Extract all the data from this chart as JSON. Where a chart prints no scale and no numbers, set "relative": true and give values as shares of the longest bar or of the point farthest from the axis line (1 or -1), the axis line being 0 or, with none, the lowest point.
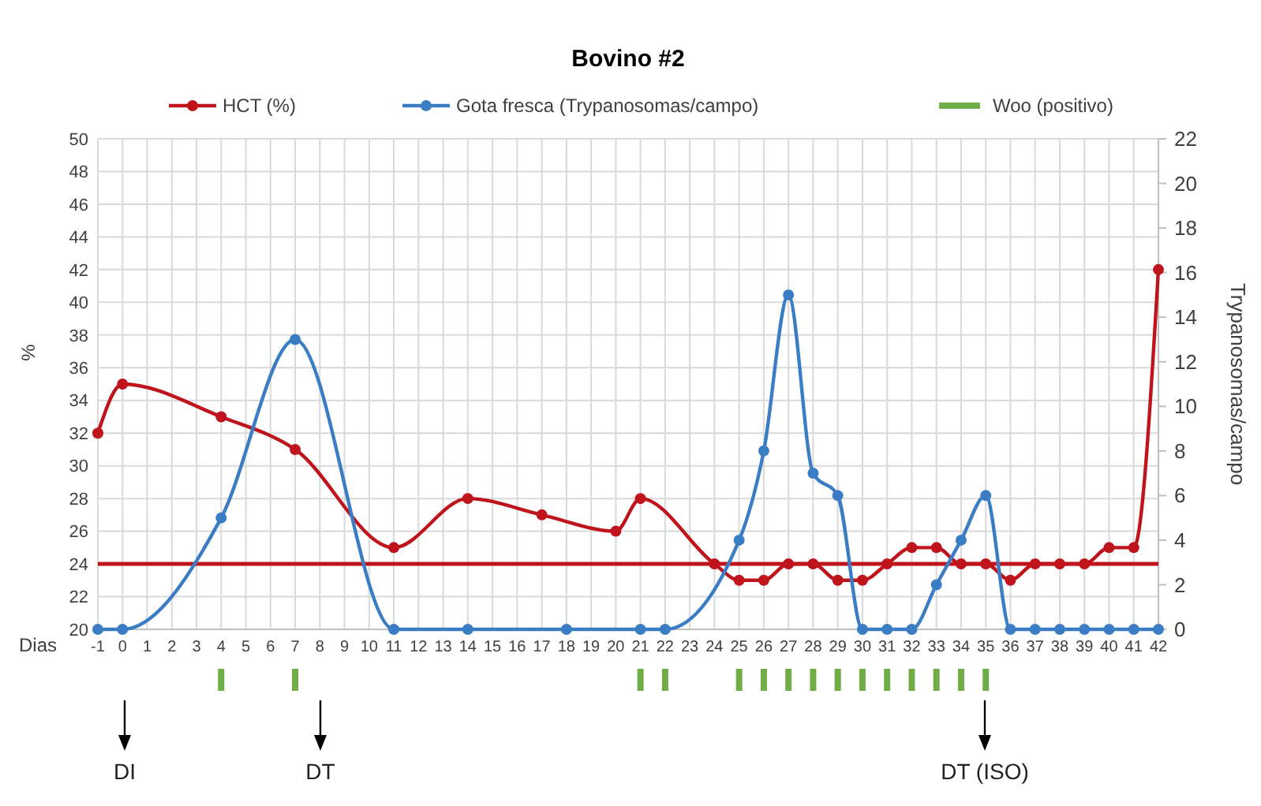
{
  "chart_data": [
    {
      "type": "line",
      "title": "Bovino #2",
      "xlabel": "Dias",
      "ylabel": "%",
      "y2label": "Trypanosomas/campo",
      "xlim": [
        -1,
        42
      ],
      "xticks": [
        -1,
        0,
        1,
        2,
        3,
        4,
        5,
        6,
        7,
        8,
        9,
        10,
        11,
        12,
        13,
        14,
        15,
        16,
        17,
        18,
        19,
        20,
        21,
        22,
        23,
        24,
        25,
        26,
        27,
        28,
        29,
        30,
        31,
        32,
        33,
        34,
        35,
        36,
        37,
        38,
        39,
        40,
        41,
        42
      ],
      "ylim": [
        20,
        50
      ],
      "yticks": [
        20,
        22,
        24,
        26,
        28,
        30,
        32,
        34,
        36,
        38,
        40,
        42,
        44,
        46,
        48,
        50
      ],
      "y2lim": [
        0,
        22
      ],
      "y2ticks": [
        0,
        2,
        4,
        6,
        8,
        10,
        12,
        14,
        16,
        18,
        20,
        22
      ],
      "grid": true,
      "legend": "top",
      "marker": "circle",
      "series": [
        {
          "name": "HCT (%)",
          "color": "#c0141c",
          "x": [
            -1,
            0,
            4,
            7,
            11,
            14,
            17,
            20,
            21,
            24,
            25,
            26,
            27,
            28,
            29,
            30,
            31,
            32,
            33,
            34,
            35,
            36,
            37,
            38,
            39,
            40,
            41,
            42
          ],
          "values": [
            32,
            35,
            33,
            31,
            25,
            28,
            27,
            26,
            28,
            24,
            23,
            23,
            24,
            24,
            23,
            23,
            24,
            25,
            25,
            24,
            24,
            23,
            24,
            24,
            24,
            25,
            25,
            42
          ]
        },
        {
          "name": "Gota fresca (Trypanosomas/campo)",
          "axis": "y2",
          "color": "#3a7dc4",
          "x": [
            -1,
            0,
            4,
            7,
            11,
            14,
            18,
            21,
            22,
            25,
            26,
            27,
            28,
            29,
            30,
            31,
            32,
            33,
            34,
            35,
            36,
            37,
            38,
            39,
            40,
            41,
            42
          ],
          "values": [
            0,
            0,
            5,
            13,
            0,
            0,
            0,
            0,
            0,
            4,
            8,
            15,
            7,
            6,
            0,
            0,
            0,
            2,
            4,
            6,
            0,
            0,
            0,
            0,
            0,
            0,
            0
          ]
        }
      ],
      "ref_lines": [
        {
          "axis": "y",
          "value": 24,
          "color": "#c0141c"
        }
      ],
      "annotations": [
        "DI",
        "DT",
        "DT (ISO)"
      ]
    },
    {
      "type": "bar",
      "relative": true,
      "xlim": [
        -1,
        42
      ],
      "legend": "top",
      "series": [
        {
          "name": "Woo (positivo)",
          "color": "#70ad47",
          "x": [
            4,
            7,
            21,
            22,
            25,
            26,
            27,
            28,
            29,
            30,
            31,
            32,
            33,
            34,
            35
          ],
          "values": [
            1,
            1,
            1,
            1,
            1,
            1,
            1,
            1,
            1,
            1,
            1,
            1,
            1,
            1,
            1
          ]
        }
      ]
    }
  ]
}
